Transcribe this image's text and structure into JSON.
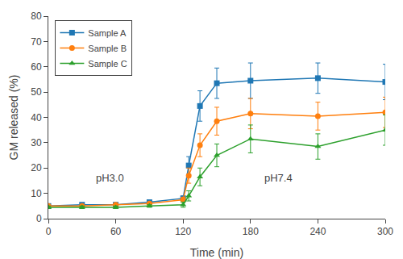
{
  "chart_data": {
    "type": "line",
    "xlabel": "Time (min)",
    "ylabel": "GM released (%)",
    "xlim": [
      0,
      300
    ],
    "ylim": [
      0,
      80
    ],
    "xticks": [
      0,
      60,
      120,
      180,
      240,
      300
    ],
    "yticks": [
      0,
      10,
      20,
      30,
      40,
      50,
      60,
      70,
      80
    ],
    "grid": false,
    "legend": "upper left",
    "annotations": [
      {
        "text": "pH3.0",
        "x": 55,
        "y": 13
      },
      {
        "text": "pH7.4",
        "x": 205,
        "y": 13
      }
    ],
    "series": [
      {
        "name": "Sample A",
        "marker": "square",
        "x": [
          0,
          30,
          60,
          90,
          120,
          125,
          135,
          150,
          180,
          240,
          300
        ],
        "values": [
          5.0,
          5.5,
          5.5,
          6.5,
          8.0,
          21.0,
          44.5,
          53.5,
          54.5,
          55.5,
          54.0
        ],
        "yerr": [
          0.5,
          0.5,
          0.5,
          0.5,
          1.0,
          3.5,
          6.0,
          6.0,
          7.0,
          6.0,
          7.0
        ]
      },
      {
        "name": "Sample B",
        "marker": "circle",
        "x": [
          0,
          30,
          60,
          90,
          120,
          125,
          135,
          150,
          180,
          240,
          300
        ],
        "values": [
          5.0,
          5.0,
          5.5,
          6.0,
          7.5,
          17.0,
          29.0,
          38.5,
          41.5,
          40.5,
          42.0
        ],
        "yerr": [
          0.5,
          0.5,
          0.5,
          0.5,
          1.0,
          3.0,
          4.5,
          5.5,
          6.0,
          5.5,
          6.0
        ]
      },
      {
        "name": "Sample C",
        "marker": "triangle-up",
        "x": [
          0,
          30,
          60,
          90,
          120,
          125,
          135,
          150,
          180,
          240,
          300
        ],
        "values": [
          4.5,
          4.5,
          4.5,
          5.0,
          5.5,
          9.0,
          16.5,
          25.0,
          31.5,
          28.5,
          35.0
        ],
        "yerr": [
          0.5,
          0.5,
          0.5,
          0.5,
          1.0,
          2.0,
          3.5,
          4.5,
          5.5,
          5.0,
          6.0
        ]
      }
    ]
  }
}
